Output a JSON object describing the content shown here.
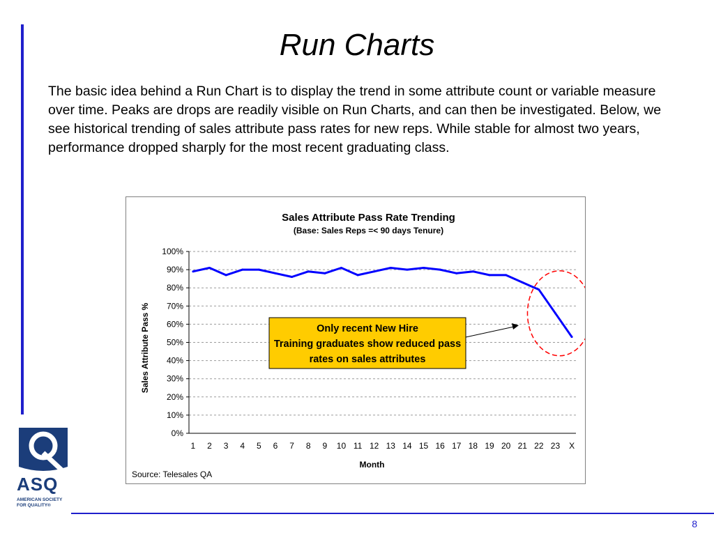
{
  "slide": {
    "title": "Run Charts",
    "body": "The basic idea behind a Run Chart is to display the trend in some attribute count or variable measure over time. Peaks are drops are readily visible on Run Charts, and can then be investigated. Below, we see historical trending of sales attribute pass rates for new reps. While stable for almost two years, performance dropped sharply for the most recent graduating class.",
    "page_number": "8"
  },
  "logo": {
    "name": "ASQ",
    "subtitle_line1": "AMERICAN SOCIETY",
    "subtitle_line2": "FOR QUALITY®"
  },
  "colors": {
    "accent_blue": "#1f1fcc",
    "series_line": "#0000ff",
    "callout_fill": "#ffcc00",
    "highlight_circle": "#ff0000",
    "logo_blue": "#1b3d7a"
  },
  "chart_data": {
    "type": "line",
    "title": "Sales Attribute Pass Rate Trending",
    "subtitle": "(Base: Sales Reps =< 90 days Tenure)",
    "xlabel": "Month",
    "ylabel": "Sales Attribute Pass %",
    "source": "Source: Telesales QA",
    "annotation": "Only recent New Hire Training graduates show reduced pass rates on sales attributes",
    "categories": [
      "1",
      "2",
      "3",
      "4",
      "5",
      "6",
      "7",
      "8",
      "9",
      "10",
      "11",
      "12",
      "13",
      "14",
      "15",
      "16",
      "17",
      "18",
      "19",
      "20",
      "21",
      "22",
      "23",
      "X"
    ],
    "y_ticks": [
      "0%",
      "10%",
      "20%",
      "30%",
      "40%",
      "50%",
      "60%",
      "70%",
      "80%",
      "90%",
      "100%"
    ],
    "ylim": [
      0,
      100
    ],
    "grid": "horizontal dashed",
    "values": [
      89,
      91,
      87,
      90,
      90,
      88,
      86,
      89,
      88,
      91,
      87,
      89,
      91,
      90,
      91,
      90,
      88,
      89,
      87,
      87,
      83,
      79,
      66,
      53
    ]
  }
}
